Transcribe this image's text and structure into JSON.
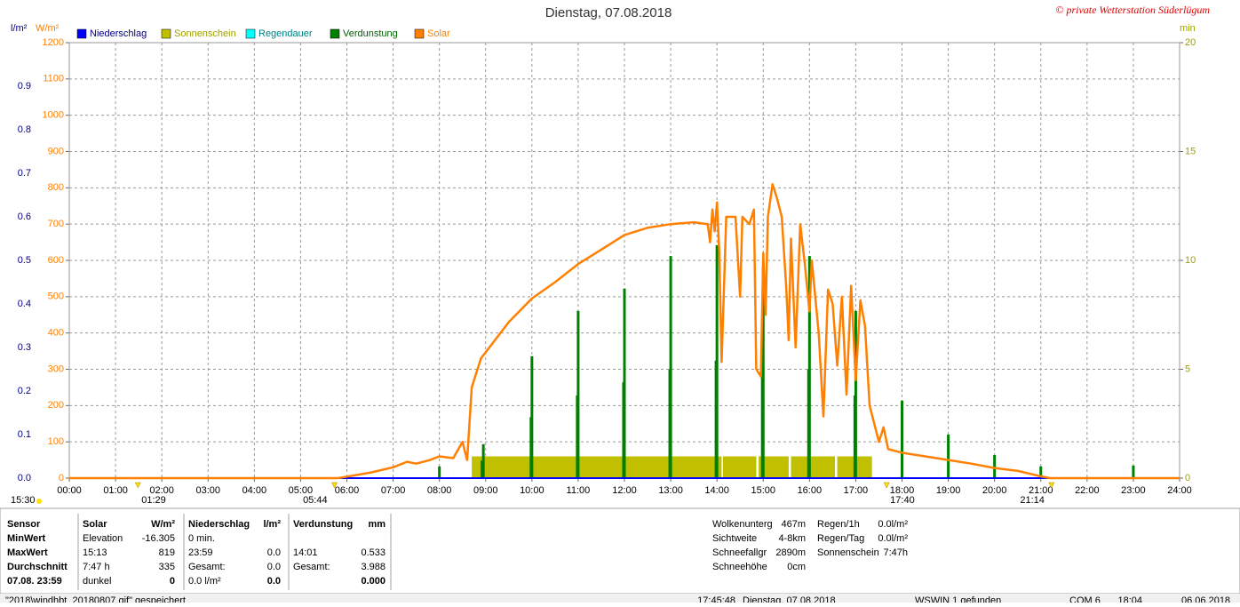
{
  "chart_data": {
    "type": "weather",
    "title": "Dienstag, 07.08.2018",
    "credit": "© private Wetterstation Süderlügum",
    "y_label": "l/m²",
    "yw_label": "W/m²",
    "y2_label": "min",
    "series": [
      {
        "name": "Niederschlag",
        "color": "#0000ff",
        "axis": "y",
        "x": [
          0,
          24
        ],
        "values": [
          0,
          0
        ]
      },
      {
        "name": "Sonnenschein",
        "color": "#c0c000",
        "axis": "y2",
        "x_start": [
          8.7,
          14.13,
          14.9,
          15.6,
          16.6,
          17.03
        ],
        "x_end": [
          14.1,
          14.85,
          15.55,
          16.55,
          17.0,
          17.35
        ],
        "values": [
          1,
          1,
          1,
          1,
          1,
          1
        ]
      },
      {
        "name": "Regendauer",
        "color": "#00ffff",
        "axis": "y2",
        "x": [],
        "values": []
      },
      {
        "name": "Verdunstung",
        "color": "#008000",
        "axis": "y",
        "x": [
          8.0,
          8.92,
          8.95,
          9.98,
          10.0,
          10.98,
          11.0,
          11.98,
          12.0,
          12.98,
          13.0,
          13.98,
          14.0,
          14.98,
          15.0,
          15.98,
          16.0,
          16.98,
          17.0,
          18.0,
          19.0,
          20.0,
          21.0,
          23.0
        ],
        "values": [
          0.027,
          0.04,
          0.078,
          0.14,
          0.28,
          0.19,
          0.384,
          0.22,
          0.435,
          0.25,
          0.51,
          0.27,
          0.535,
          0.24,
          0.486,
          0.25,
          0.51,
          0.19,
          0.384,
          0.178,
          0.1,
          0.053,
          0.027,
          0.029
        ]
      },
      {
        "name": "Solar",
        "color": "#ff8000",
        "axis": "yw",
        "x": [
          0,
          5.8,
          5.9,
          6.5,
          7.0,
          7.3,
          7.5,
          7.8,
          8.0,
          8.3,
          8.5,
          8.6,
          8.7,
          8.9,
          9.2,
          9.5,
          10.0,
          10.5,
          11.0,
          11.5,
          12.0,
          12.5,
          13.0,
          13.5,
          13.8,
          13.85,
          13.9,
          13.95,
          14.0,
          14.05,
          14.1,
          14.2,
          14.4,
          14.5,
          14.55,
          14.7,
          14.8,
          14.85,
          14.95,
          15.0,
          15.05,
          15.1,
          15.2,
          15.3,
          15.4,
          15.5,
          15.55,
          15.6,
          15.7,
          15.8,
          15.9,
          16.0,
          16.05,
          16.2,
          16.3,
          16.4,
          16.5,
          16.6,
          16.7,
          16.8,
          16.9,
          17.0,
          17.1,
          17.2,
          17.3,
          17.5,
          17.6,
          17.7,
          18.0,
          18.5,
          19.0,
          19.5,
          20.0,
          20.5,
          21.0,
          21.2,
          24
        ],
        "values": [
          0,
          0,
          2,
          15,
          30,
          45,
          40,
          50,
          60,
          55,
          100,
          50,
          250,
          330,
          380,
          430,
          495,
          540,
          590,
          630,
          670,
          690,
          700,
          705,
          700,
          650,
          740,
          680,
          760,
          620,
          320,
          720,
          720,
          500,
          720,
          700,
          740,
          300,
          280,
          620,
          450,
          720,
          810,
          770,
          720,
          520,
          380,
          660,
          360,
          700,
          590,
          460,
          600,
          400,
          170,
          520,
          480,
          310,
          500,
          230,
          530,
          270,
          490,
          420,
          200,
          100,
          140,
          80,
          70,
          60,
          50,
          40,
          28,
          20,
          5,
          0,
          0
        ]
      }
    ],
    "xlim": [
      0,
      24
    ],
    "xticks": [
      {
        "value": 0,
        "label": "00:00"
      },
      {
        "value": 1,
        "label": "01:00"
      },
      {
        "value": 2,
        "label": "02:00"
      },
      {
        "value": 3,
        "label": "03:00"
      },
      {
        "value": 4,
        "label": "04:00"
      },
      {
        "value": 5,
        "label": "05:00"
      },
      {
        "value": 6,
        "label": "06:00"
      },
      {
        "value": 7,
        "label": "07:00"
      },
      {
        "value": 8,
        "label": "08:00"
      },
      {
        "value": 9,
        "label": "09:00"
      },
      {
        "value": 10,
        "label": "10:00"
      },
      {
        "value": 11,
        "label": "11:00"
      },
      {
        "value": 12,
        "label": "12:00"
      },
      {
        "value": 13,
        "label": "13:00"
      },
      {
        "value": 14,
        "label": "14:00"
      },
      {
        "value": 15,
        "label": "15:00"
      },
      {
        "value": 16,
        "label": "16:00"
      },
      {
        "value": 17,
        "label": "17:00"
      },
      {
        "value": 18,
        "label": "18:00"
      },
      {
        "value": 19,
        "label": "19:00"
      },
      {
        "value": 20,
        "label": "20:00"
      },
      {
        "value": 21,
        "label": "21:00"
      },
      {
        "value": 22,
        "label": "22:00"
      },
      {
        "value": 23,
        "label": "23:00"
      },
      {
        "value": 24,
        "label": "24:00"
      }
    ],
    "ylim": [
      0,
      1
    ],
    "yticks": [
      {
        "value": 0,
        "label": "0.0"
      },
      0.1,
      0.2,
      0.3,
      0.4,
      0.5,
      0.6,
      0.7,
      0.8,
      0.9
    ],
    "ywlim": [
      0,
      1200
    ],
    "ywticks": [
      0,
      100,
      200,
      300,
      400,
      500,
      600,
      700,
      800,
      900,
      1000,
      1100,
      1200
    ],
    "y2lim": [
      0,
      20
    ],
    "y2ticks": [
      0,
      5,
      10,
      15,
      20
    ],
    "grid": true,
    "markers": [
      {
        "x": 1.483,
        "label": "01:29"
      },
      {
        "x": 5.733,
        "label": "05:44"
      },
      {
        "x": 17.667,
        "label": "17:40"
      },
      {
        "x": 21.233,
        "label": "21:14"
      }
    ],
    "left_marker": "15:30"
  },
  "table": {
    "rows": [
      [
        "Sensor",
        "Solar",
        "W/m²",
        "Niederschlag",
        "l/m²",
        "Verdunstung",
        "mm"
      ],
      [
        "MinWert",
        "Elevation",
        "-16.305",
        "0 min.",
        null,
        null,
        null
      ],
      [
        "MaxWert",
        "15:13",
        "819",
        "23:59",
        "0.0",
        "14:01",
        "0.533"
      ],
      [
        "Durchschnitt",
        "7:47 h",
        "335",
        "Gesamt:",
        "0.0",
        "Gesamt:",
        "3.988"
      ],
      [
        "07.08. 23:59",
        "dunkel",
        "0",
        "0.0 l/m²",
        "0.0",
        null,
        "0.000"
      ]
    ]
  },
  "info": {
    "rows": [
      [
        "Wolkenunterg",
        "467m",
        "Regen/1h",
        "0.0l/m²"
      ],
      [
        "Sichtweite",
        "4-8km",
        "Regen/Tag",
        "0.0l/m²"
      ],
      [
        "Schneefallgr",
        "2890m",
        "Sonnenschein",
        "7:47h"
      ],
      [
        "Schneehöhe",
        "0cm"
      ]
    ]
  },
  "status": [
    "\"2018\\windhbt_20180807.gif\" gespeichert",
    "17:45:48",
    "Dienstag, 07.08.2018",
    "WSWIN 1 gefunden",
    "COM 6",
    "18:04",
    "06.06.2018"
  ]
}
